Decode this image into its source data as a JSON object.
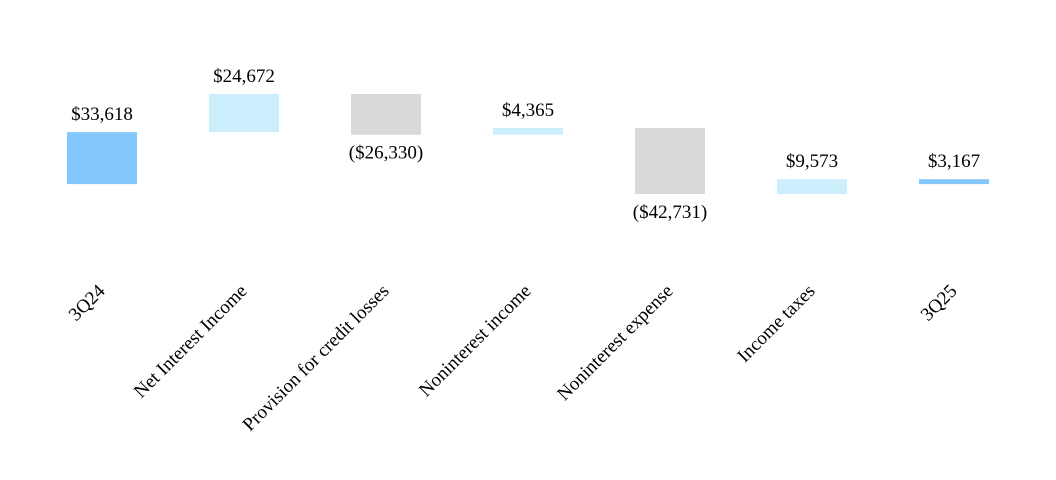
{
  "chart_data": {
    "type": "waterfall",
    "categories": [
      "3Q24",
      "Net Interest Income",
      "Provision for credit losses",
      "Noninterest income",
      "Noninterest expense",
      "Income taxes",
      "3Q25"
    ],
    "values": [
      33618,
      24672,
      -26330,
      4365,
      -42731,
      9573,
      3167
    ],
    "value_labels": [
      "$33,618",
      "$24,672",
      "($26,330)",
      "$4,365",
      "($42,731)",
      "$9,573",
      "$3,167"
    ],
    "colors": [
      "#82c8fc",
      "#cdeefd",
      "#d9d9d9",
      "#cdeefd",
      "#d9d9d9",
      "#cdeefd",
      "#82c8fc"
    ]
  }
}
